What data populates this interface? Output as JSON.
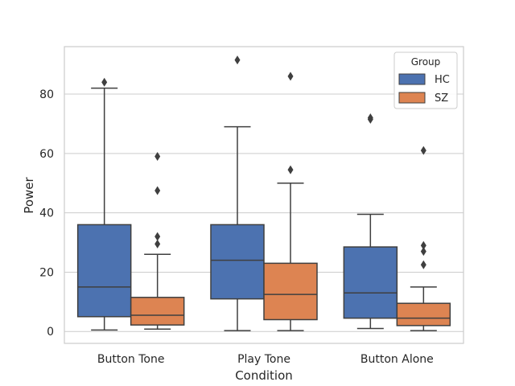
{
  "chart_data": {
    "type": "boxplot",
    "title": "",
    "xlabel": "Condition",
    "ylabel": "Power",
    "ylim": [
      -4,
      96
    ],
    "yticks": [
      0,
      20,
      40,
      60,
      80
    ],
    "grid": "horizontal",
    "legend": {
      "title": "Group",
      "placement": "top-right"
    },
    "categories": [
      "Button Tone",
      "Play Tone",
      "Button Alone"
    ],
    "series": [
      {
        "name": "HC",
        "color": "#4c72b0",
        "boxes": [
          {
            "whisker_low": 0.5,
            "q1": 5,
            "median": 15,
            "q3": 36,
            "whisker_high": 82,
            "outliers": [
              84
            ]
          },
          {
            "whisker_low": 0.3,
            "q1": 11,
            "median": 24,
            "q3": 36,
            "whisker_high": 69,
            "outliers": [
              91.5
            ]
          },
          {
            "whisker_low": 1,
            "q1": 4.5,
            "median": 13,
            "q3": 28.5,
            "whisker_high": 39.5,
            "outliers": [
              71.5,
              72
            ]
          }
        ]
      },
      {
        "name": "SZ",
        "color": "#dd8452",
        "boxes": [
          {
            "whisker_low": 0.8,
            "q1": 2.2,
            "median": 5.5,
            "q3": 11.5,
            "whisker_high": 26,
            "outliers": [
              29.5,
              32,
              47.5,
              59
            ]
          },
          {
            "whisker_low": 0.3,
            "q1": 4,
            "median": 12.5,
            "q3": 23,
            "whisker_high": 50,
            "outliers": [
              54.5,
              86
            ]
          },
          {
            "whisker_low": 0.3,
            "q1": 2,
            "median": 4.5,
            "q3": 9.5,
            "whisker_high": 15,
            "outliers": [
              22.5,
              27,
              29,
              61
            ]
          }
        ]
      }
    ]
  }
}
